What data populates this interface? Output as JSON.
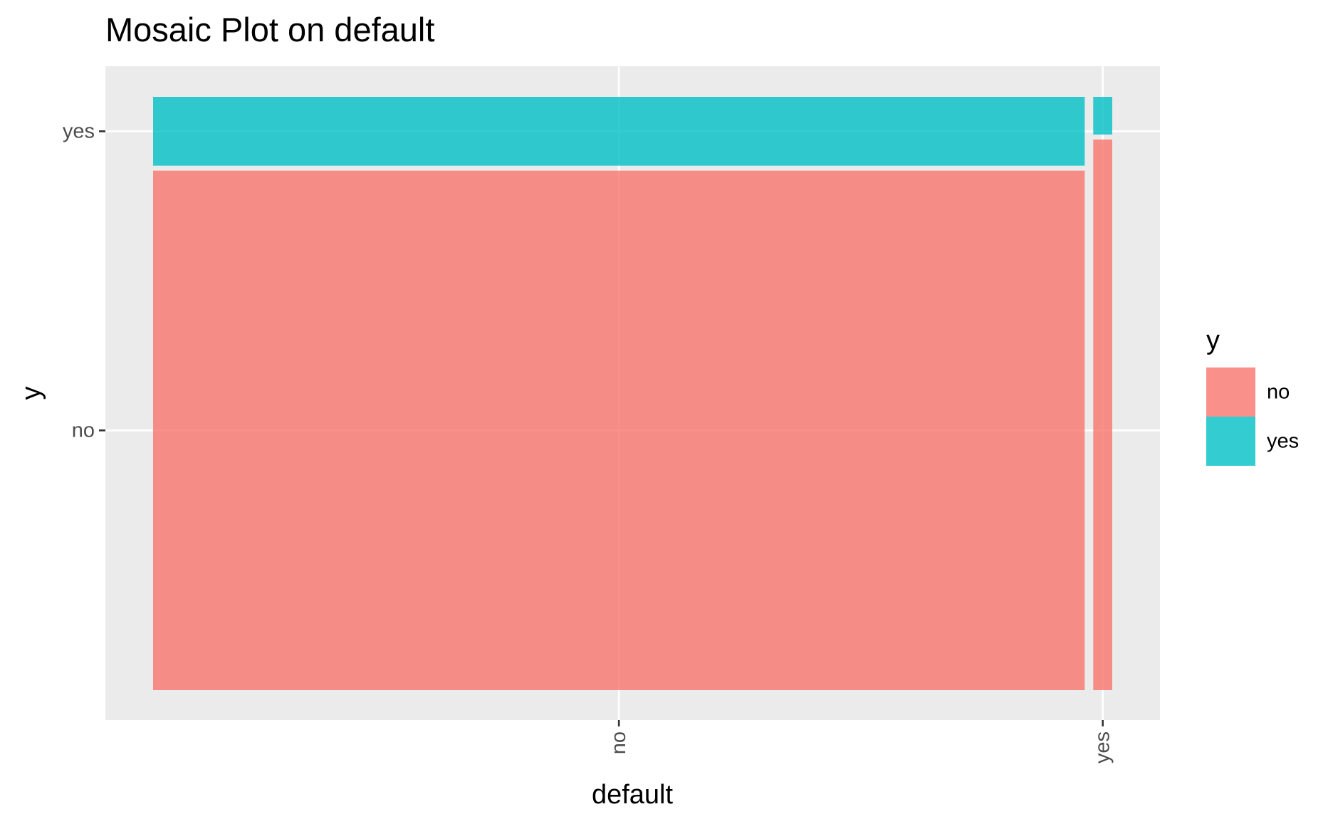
{
  "chart_data": {
    "type": "mosaic",
    "title": "Mosaic Plot on default",
    "xlabel": "default",
    "ylabel": "y",
    "x_categories": [
      "no",
      "yes"
    ],
    "y_categories": [
      "no",
      "yes"
    ],
    "x_proportions": {
      "no": 0.98,
      "yes": 0.02
    },
    "cells": [
      {
        "x": "no",
        "y": "no",
        "proportion": 0.883
      },
      {
        "x": "no",
        "y": "yes",
        "proportion": 0.117
      },
      {
        "x": "yes",
        "y": "no",
        "proportion": 0.936
      },
      {
        "x": "yes",
        "y": "yes",
        "proportion": 0.064
      }
    ],
    "legend": {
      "title": "y",
      "position": "right",
      "entries": [
        {
          "label": "no",
          "color": "#F8766D"
        },
        {
          "label": "yes",
          "color": "#00BFC4"
        }
      ]
    },
    "panel_background": "#EBEBEB",
    "grid": true,
    "fill_opacity": 0.8
  }
}
